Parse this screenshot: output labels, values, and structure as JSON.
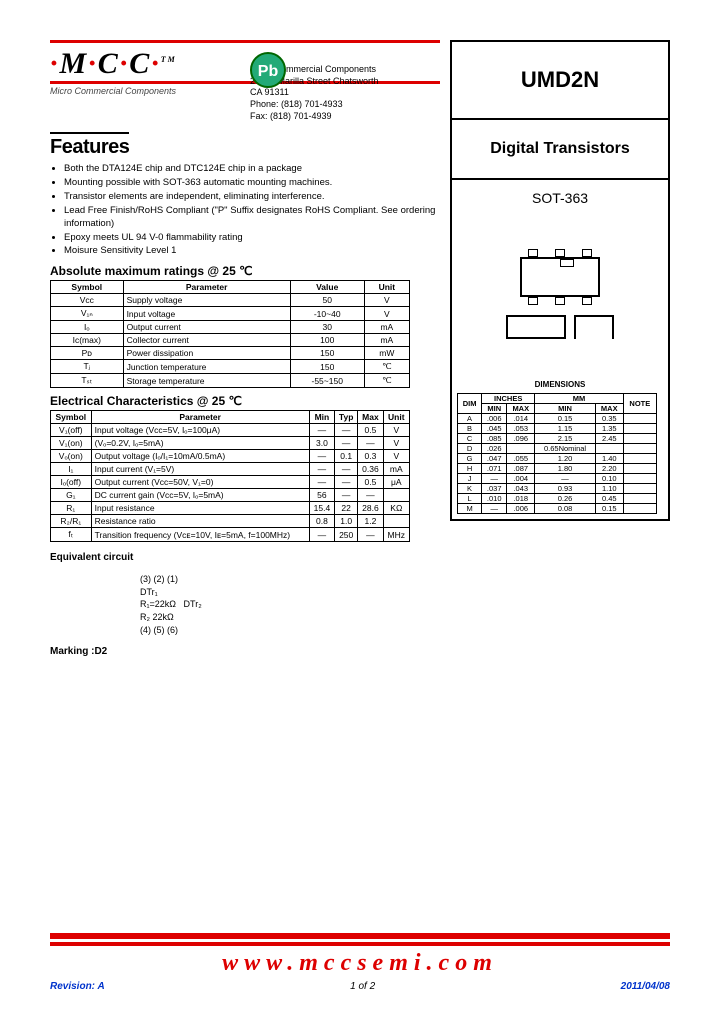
{
  "logo": {
    "text_m": "M",
    "text_c1": "C",
    "text_c2": "C",
    "dot": "·",
    "tm": "TM",
    "sub": "Micro Commercial Components"
  },
  "pb_badge": "Pb",
  "address": {
    "l1": "Micro Commercial Components",
    "l2": "20736 Marilla Street Chatsworth",
    "l3": "CA 91311",
    "l4": "Phone: (818) 701-4933",
    "l5": "Fax:      (818) 701-4939"
  },
  "part_number": "UMD2N",
  "description": "Digital Transistors",
  "package_name": "SOT-363",
  "features_heading": "Features",
  "features": [
    "Both the DTA124E chip and DTC124E chip in a package",
    "Mounting possible with SOT-363 automatic mounting machines.",
    "Transistor elements are independent, eliminating interference.",
    "Lead Free Finish/RoHS Compliant (\"P\" Suffix designates RoHS Compliant.  See ordering information)",
    "Epoxy meets UL 94 V-0 flammability rating",
    "Moisure Sensitivity Level 1"
  ],
  "abs_heading": "Absolute maximum ratings @ 25 ℃",
  "abs_headers": [
    "Symbol",
    "Parameter",
    "Value",
    "Unit"
  ],
  "abs_rows": [
    {
      "sym": "Vᴄᴄ",
      "param": "Supply voltage",
      "val": "50",
      "unit": "V"
    },
    {
      "sym": "V₁ₙ",
      "param": "Input voltage",
      "val": "-10~40",
      "unit": "V"
    },
    {
      "sym": "Iₒ",
      "param": "Output current",
      "val": "30",
      "unit": "mA"
    },
    {
      "sym": "Iᴄ(max)",
      "param": "Collector current",
      "val": "100",
      "unit": "mA"
    },
    {
      "sym": "Pᴅ",
      "param": "Power dissipation",
      "val": "150",
      "unit": "mW"
    },
    {
      "sym": "Tⱼ",
      "param": "Junction temperature",
      "val": "150",
      "unit": "℃"
    },
    {
      "sym": "Tₛₜ",
      "param": "Storage temperature",
      "val": "-55~150",
      "unit": "℃"
    }
  ],
  "elec_heading": "Electrical Characteristics @ 25 ℃",
  "elec_headers": [
    "Symbol",
    "Parameter",
    "Min",
    "Typ",
    "Max",
    "Unit"
  ],
  "elec_rows": [
    {
      "sym": "V₁(off)",
      "param": "Input voltage (Vᴄᴄ=5V, Iₒ=100μA)",
      "min": "—",
      "typ": "—",
      "max": "0.5",
      "unit": "V"
    },
    {
      "sym": "V₁(on)",
      "param": "(Vₒ=0.2V, Iₒ=5mA)",
      "min": "3.0",
      "typ": "—",
      "max": "—",
      "unit": "V"
    },
    {
      "sym": "Vₒ(on)",
      "param": "Output voltage (Iₒ/I₁=10mA/0.5mA)",
      "min": "—",
      "typ": "0.1",
      "max": "0.3",
      "unit": "V"
    },
    {
      "sym": "I₁",
      "param": "Input current (V₁=5V)",
      "min": "—",
      "typ": "—",
      "max": "0.36",
      "unit": "mA"
    },
    {
      "sym": "Iₒ(off)",
      "param": "Output current (Vᴄᴄ=50V, V₁=0)",
      "min": "—",
      "typ": "—",
      "max": "0.5",
      "unit": "μA"
    },
    {
      "sym": "G₁",
      "param": "DC current gain (Vᴄᴄ=5V, Iₒ=5mA)",
      "min": "56",
      "typ": "—",
      "max": "—",
      "unit": ""
    },
    {
      "sym": "R₁",
      "param": "Input resistance",
      "min": "15.4",
      "typ": "22",
      "max": "28.6",
      "unit": "KΩ"
    },
    {
      "sym": "R₂/R₁",
      "param": "Resistance ratio",
      "min": "0.8",
      "typ": "1.0",
      "max": "1.2",
      "unit": ""
    },
    {
      "sym": "fₜ",
      "param": "Transition frequency (Vᴄᴇ=10V, Iᴇ=5mA, f=100MHz)",
      "min": "—",
      "typ": "250",
      "max": "—",
      "unit": "MHz"
    }
  ],
  "eq_heading": "Equivalent circuit",
  "eq_labels": {
    "pins": "(3)   (2)   (1)",
    "r1": "R₁=22kΩ",
    "r2": "R₂  22kΩ",
    "dtr1": "DTr₁",
    "dtr2": "DTr₂",
    "pins2": "(4) (5) (6)"
  },
  "marking_label": "Marking :",
  "marking_value": "D2",
  "dim_heading": "DIMENSIONS",
  "dim_headers": {
    "dim": "DIM",
    "inches": "INCHES",
    "mm": "MM",
    "note": "NOTE",
    "min": "MIN",
    "max": "MAX"
  },
  "dim_rows": [
    [
      "A",
      ".006",
      ".014",
      "0.15",
      "0.35",
      ""
    ],
    [
      "B",
      ".045",
      ".053",
      "1.15",
      "1.35",
      ""
    ],
    [
      "C",
      ".085",
      ".096",
      "2.15",
      "2.45",
      ""
    ],
    [
      "D",
      ".026",
      "",
      "0.65Nominal",
      "",
      ""
    ],
    [
      "G",
      ".047",
      ".055",
      "1.20",
      "1.40",
      ""
    ],
    [
      "H",
      ".071",
      ".087",
      "1.80",
      "2.20",
      ""
    ],
    [
      "J",
      "—",
      ".004",
      "—",
      "0.10",
      ""
    ],
    [
      "K",
      ".037",
      ".043",
      "0.93",
      "1.10",
      ""
    ],
    [
      "L",
      ".010",
      ".018",
      "0.26",
      "0.45",
      ""
    ],
    [
      "M",
      "—",
      ".006",
      "0.08",
      "0.15",
      ""
    ]
  ],
  "url": "www.mccsemi.com",
  "revision_label": "Revision:",
  "revision": "A",
  "page_of": "1 of 2",
  "date": "2011/04/08",
  "colors": {
    "red": "#d00000",
    "blue": "#0033cc",
    "green_badge": "#22aa77"
  }
}
